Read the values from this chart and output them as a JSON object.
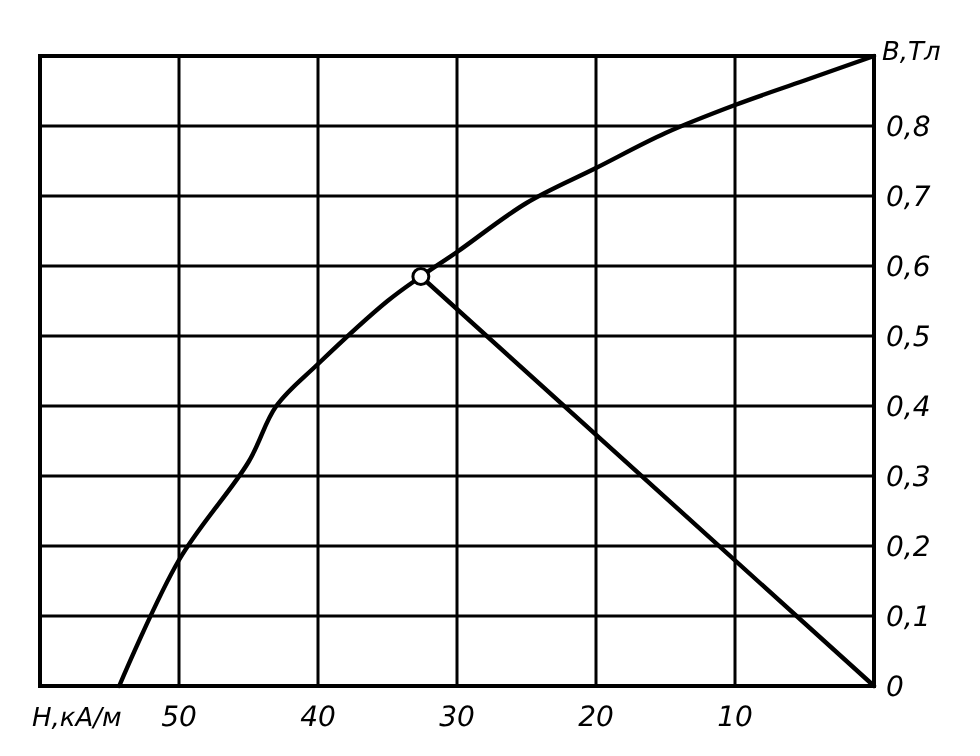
{
  "chart_data": {
    "type": "line",
    "xlabel": "H,кА/м",
    "ylabel": "B,Тл",
    "xlim": [
      60,
      0
    ],
    "ylim": [
      0,
      0.9
    ],
    "xticks": [
      50,
      40,
      30,
      20,
      10,
      {
        "value": 0,
        "label": null
      }
    ],
    "yticks": [
      {
        "value": 0,
        "label": "0"
      },
      {
        "value": 0.1,
        "label": "0,1"
      },
      {
        "value": 0.2,
        "label": "0,2"
      },
      {
        "value": 0.3,
        "label": "0,3"
      },
      {
        "value": 0.4,
        "label": "0,4"
      },
      {
        "value": 0.5,
        "label": "0,5"
      },
      {
        "value": 0.6,
        "label": "0,6"
      },
      {
        "value": 0.7,
        "label": "0,7"
      },
      {
        "value": 0.8,
        "label": "0,8"
      }
    ],
    "grid": true,
    "series": [
      {
        "color": "#000000",
        "x": [
          54.3,
          50,
          45,
          43,
          40,
          35,
          32.6,
          30,
          25,
          20,
          15,
          10,
          5,
          0
        ],
        "values": [
          0,
          0.18,
          0.32,
          0.4,
          0.46,
          0.55,
          0.585,
          0.62,
          0.69,
          0.74,
          0.79,
          0.83,
          0.865,
          0.9
        ]
      },
      {
        "type": "line",
        "color": "#000000",
        "x": [
          32.6,
          0
        ],
        "values": [
          0.585,
          0
        ]
      },
      {
        "type": "scatter",
        "color": "#000000",
        "marker": "circle",
        "x": [
          32.6
        ],
        "values": [
          0.585
        ]
      }
    ]
  }
}
